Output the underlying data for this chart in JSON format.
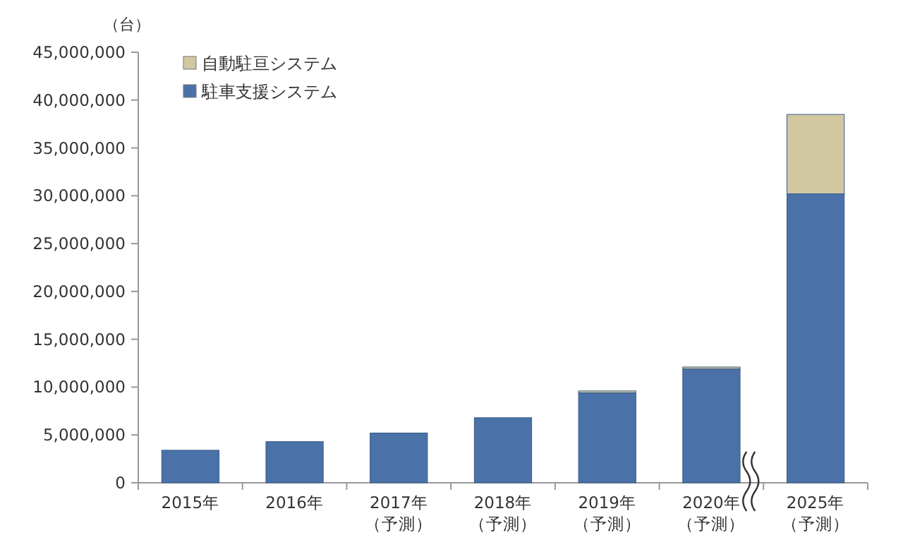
{
  "chart_data": {
    "type": "bar",
    "stacked": true,
    "ylabel": "（台）",
    "categories": [
      "2015年",
      "2016年",
      "2017年（予測）",
      "2018年（予測）",
      "2019年（予測）",
      "2020年（予測）",
      "2025年（予測）"
    ],
    "series": [
      {
        "name": "駐車支援システム",
        "color": "#4a72a8",
        "values": [
          3400000,
          4300000,
          5200000,
          6800000,
          9400000,
          11900000,
          30200000
        ]
      },
      {
        "name": "自動駐亘システム",
        "color": "#d1c7a1",
        "values": [
          0,
          0,
          0,
          0,
          200000,
          200000,
          8300000
        ]
      }
    ],
    "ylim": [
      0,
      45000000
    ],
    "yticks": [
      {
        "value": 0,
        "label": "0"
      },
      {
        "value": 5000000,
        "label": "5,000,000"
      },
      {
        "value": 10000000,
        "label": "10,000,000"
      },
      {
        "value": 15000000,
        "label": "15,000,000"
      },
      {
        "value": 20000000,
        "label": "20,000,000"
      },
      {
        "value": 25000000,
        "label": "25,000,000"
      },
      {
        "value": 30000000,
        "label": "30,000,000"
      },
      {
        "value": 35000000,
        "label": "35,000,000"
      },
      {
        "value": 40000000,
        "label": "40,000,000"
      },
      {
        "value": 45000000,
        "label": "45,000,000"
      }
    ],
    "grid": false,
    "legend": "top left"
  }
}
